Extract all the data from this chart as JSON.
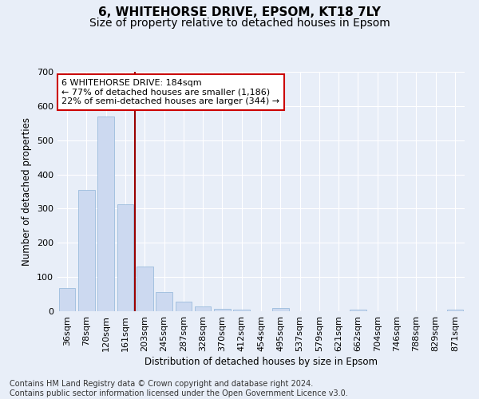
{
  "title": "6, WHITEHORSE DRIVE, EPSOM, KT18 7LY",
  "subtitle": "Size of property relative to detached houses in Epsom",
  "xlabel": "Distribution of detached houses by size in Epsom",
  "ylabel": "Number of detached properties",
  "categories": [
    "36sqm",
    "78sqm",
    "120sqm",
    "161sqm",
    "203sqm",
    "245sqm",
    "287sqm",
    "328sqm",
    "370sqm",
    "412sqm",
    "454sqm",
    "495sqm",
    "537sqm",
    "579sqm",
    "621sqm",
    "662sqm",
    "704sqm",
    "746sqm",
    "788sqm",
    "829sqm",
    "871sqm"
  ],
  "values": [
    68,
    355,
    570,
    312,
    130,
    55,
    27,
    15,
    7,
    5,
    0,
    10,
    0,
    0,
    0,
    5,
    0,
    0,
    0,
    0,
    5
  ],
  "bar_color": "#ccd9f0",
  "bar_edge_color": "#8fb4d9",
  "vline_x": 3.5,
  "vline_color": "#990000",
  "annotation_text": "6 WHITEHORSE DRIVE: 184sqm\n← 77% of detached houses are smaller (1,186)\n22% of semi-detached houses are larger (344) →",
  "annotation_box_color": "white",
  "annotation_box_edge_color": "#cc0000",
  "ylim": [
    0,
    700
  ],
  "yticks": [
    0,
    100,
    200,
    300,
    400,
    500,
    600,
    700
  ],
  "background_color": "#e8eef8",
  "plot_bg_color": "#e8eef8",
  "grid_color": "#ffffff",
  "footer": "Contains HM Land Registry data © Crown copyright and database right 2024.\nContains public sector information licensed under the Open Government Licence v3.0.",
  "title_fontsize": 11,
  "subtitle_fontsize": 10,
  "label_fontsize": 8.5,
  "tick_fontsize": 8,
  "footer_fontsize": 7,
  "annot_fontsize": 8
}
